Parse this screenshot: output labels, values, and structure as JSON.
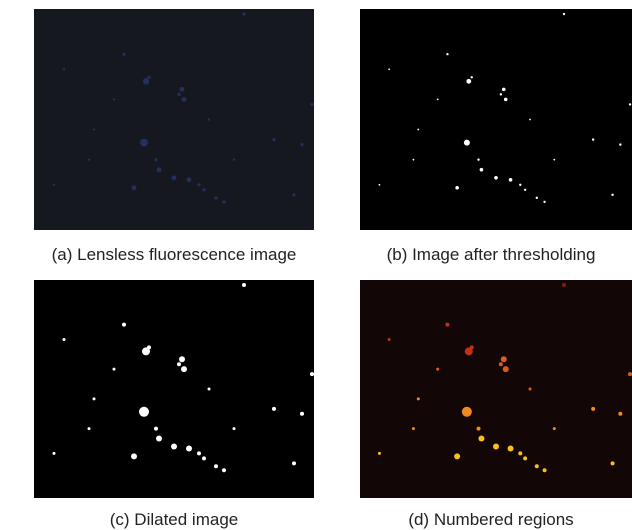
{
  "figure": {
    "panels": [
      {
        "caption": "(a) Lensless fluorescence image"
      },
      {
        "caption": "(b) Image after thresholding"
      },
      {
        "caption": "(c) Dilated image"
      },
      {
        "caption": "(d) Numbered regions"
      }
    ]
  }
}
